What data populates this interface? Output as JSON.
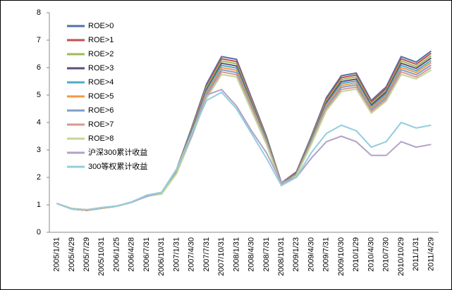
{
  "chart_data": {
    "type": "line",
    "categories": [
      "2005/1/31",
      "2005/4/29",
      "2005/7/29",
      "2005/10/31",
      "2006/1/25",
      "2006/4/28",
      "2006/7/31",
      "2006/10/31",
      "2007/1/31",
      "2007/4/30",
      "2007/7/31",
      "2007/10/31",
      "2008/1/31",
      "2008/4/30",
      "2008/7/31",
      "2008/10/31",
      "2009/1/23",
      "2009/4/30",
      "2009/7/31",
      "2009/10/30",
      "2010/1/29",
      "2010/4/30",
      "2010/7/30",
      "2010/10/29",
      "2011/1/31",
      "2011/4/29"
    ],
    "ylim": [
      0,
      8
    ],
    "yticks": [
      0,
      1,
      2,
      3,
      4,
      5,
      6,
      7,
      8
    ],
    "grid": false,
    "legend": "upper left",
    "series": [
      {
        "name": "ROE>0",
        "color": "#4f6fad",
        "values": [
          1.05,
          0.85,
          0.8,
          0.88,
          0.95,
          1.1,
          1.35,
          1.45,
          2.3,
          3.8,
          5.4,
          6.4,
          6.3,
          4.9,
          3.5,
          1.8,
          2.2,
          3.5,
          4.9,
          5.7,
          5.8,
          4.8,
          5.3,
          6.4,
          6.2,
          6.6
        ]
      },
      {
        "name": "ROE>1",
        "color": "#c0504d",
        "values": [
          1.05,
          0.85,
          0.8,
          0.88,
          0.95,
          1.1,
          1.34,
          1.44,
          2.28,
          3.76,
          5.33,
          6.32,
          6.22,
          4.84,
          3.46,
          1.79,
          2.18,
          3.46,
          4.84,
          5.63,
          5.73,
          4.74,
          5.24,
          6.32,
          6.12,
          6.52
        ]
      },
      {
        "name": "ROE>2",
        "color": "#9bbb59",
        "values": [
          1.05,
          0.85,
          0.8,
          0.88,
          0.95,
          1.1,
          1.34,
          1.44,
          2.26,
          3.72,
          5.27,
          6.24,
          6.14,
          4.78,
          3.43,
          1.78,
          2.16,
          3.43,
          4.78,
          5.56,
          5.66,
          4.69,
          5.17,
          6.24,
          6.04,
          6.43
        ]
      },
      {
        "name": "ROE>3",
        "color": "#604a7b",
        "values": [
          1.05,
          0.85,
          0.8,
          0.88,
          0.95,
          1.1,
          1.33,
          1.43,
          2.24,
          3.67,
          5.2,
          6.16,
          6.06,
          4.72,
          3.39,
          1.76,
          2.15,
          3.39,
          4.72,
          5.49,
          5.58,
          4.63,
          5.11,
          6.16,
          5.97,
          6.35
        ]
      },
      {
        "name": "ROE>4",
        "color": "#4bacc6",
        "values": [
          1.05,
          0.85,
          0.8,
          0.88,
          0.95,
          1.1,
          1.33,
          1.42,
          2.22,
          3.63,
          5.14,
          6.08,
          5.98,
          4.66,
          3.35,
          1.75,
          2.13,
          3.35,
          4.66,
          5.42,
          5.51,
          4.57,
          5.04,
          6.08,
          5.89,
          6.26
        ]
      },
      {
        "name": "ROE>5",
        "color": "#f79646",
        "values": [
          1.05,
          0.85,
          0.8,
          0.88,
          0.95,
          1.09,
          1.33,
          1.42,
          2.2,
          3.59,
          5.07,
          6.0,
          5.9,
          4.61,
          3.31,
          1.74,
          2.11,
          3.31,
          4.61,
          5.35,
          5.44,
          4.52,
          4.97,
          6.0,
          5.82,
          6.18
        ]
      },
      {
        "name": "ROE>6",
        "color": "#7f9fc8",
        "values": [
          1.05,
          0.86,
          0.82,
          0.89,
          0.95,
          1.09,
          1.32,
          1.41,
          2.18,
          3.55,
          5.01,
          5.92,
          5.82,
          4.55,
          3.28,
          1.73,
          2.09,
          3.28,
          4.55,
          5.28,
          5.37,
          4.46,
          4.91,
          5.92,
          5.74,
          6.09
        ]
      },
      {
        "name": "ROE>7",
        "color": "#d99694",
        "values": [
          1.05,
          0.87,
          0.82,
          0.89,
          0.96,
          1.09,
          1.32,
          1.4,
          2.16,
          3.51,
          4.94,
          5.84,
          5.74,
          4.49,
          3.24,
          1.72,
          2.07,
          3.24,
          4.49,
          5.2,
          5.29,
          4.4,
          4.84,
          5.84,
          5.66,
          6.0
        ]
      },
      {
        "name": "ROE>8",
        "color": "#c3d69b",
        "values": [
          1.05,
          0.87,
          0.82,
          0.89,
          0.96,
          1.09,
          1.32,
          1.39,
          2.14,
          3.46,
          4.88,
          5.75,
          5.66,
          4.43,
          3.2,
          1.7,
          2.06,
          3.2,
          4.43,
          5.12,
          5.22,
          4.34,
          4.78,
          5.75,
          5.59,
          5.91
        ]
      },
      {
        "name": "沪深300累计收益",
        "color": "#b3a2c7",
        "values": [
          1.05,
          0.85,
          0.82,
          0.9,
          0.95,
          1.1,
          1.3,
          1.45,
          2.3,
          3.5,
          5.0,
          5.2,
          4.6,
          3.7,
          2.9,
          1.8,
          2.0,
          2.7,
          3.3,
          3.5,
          3.3,
          2.8,
          2.8,
          3.3,
          3.1,
          3.2
        ]
      },
      {
        "name": "300等权累计收益",
        "color": "#93cddd",
        "values": [
          1.05,
          0.85,
          0.82,
          0.9,
          0.95,
          1.1,
          1.35,
          1.45,
          2.3,
          3.6,
          4.8,
          5.1,
          4.5,
          3.6,
          2.7,
          1.7,
          2.0,
          2.9,
          3.6,
          3.9,
          3.7,
          3.1,
          3.3,
          4.0,
          3.8,
          3.9
        ]
      }
    ]
  }
}
